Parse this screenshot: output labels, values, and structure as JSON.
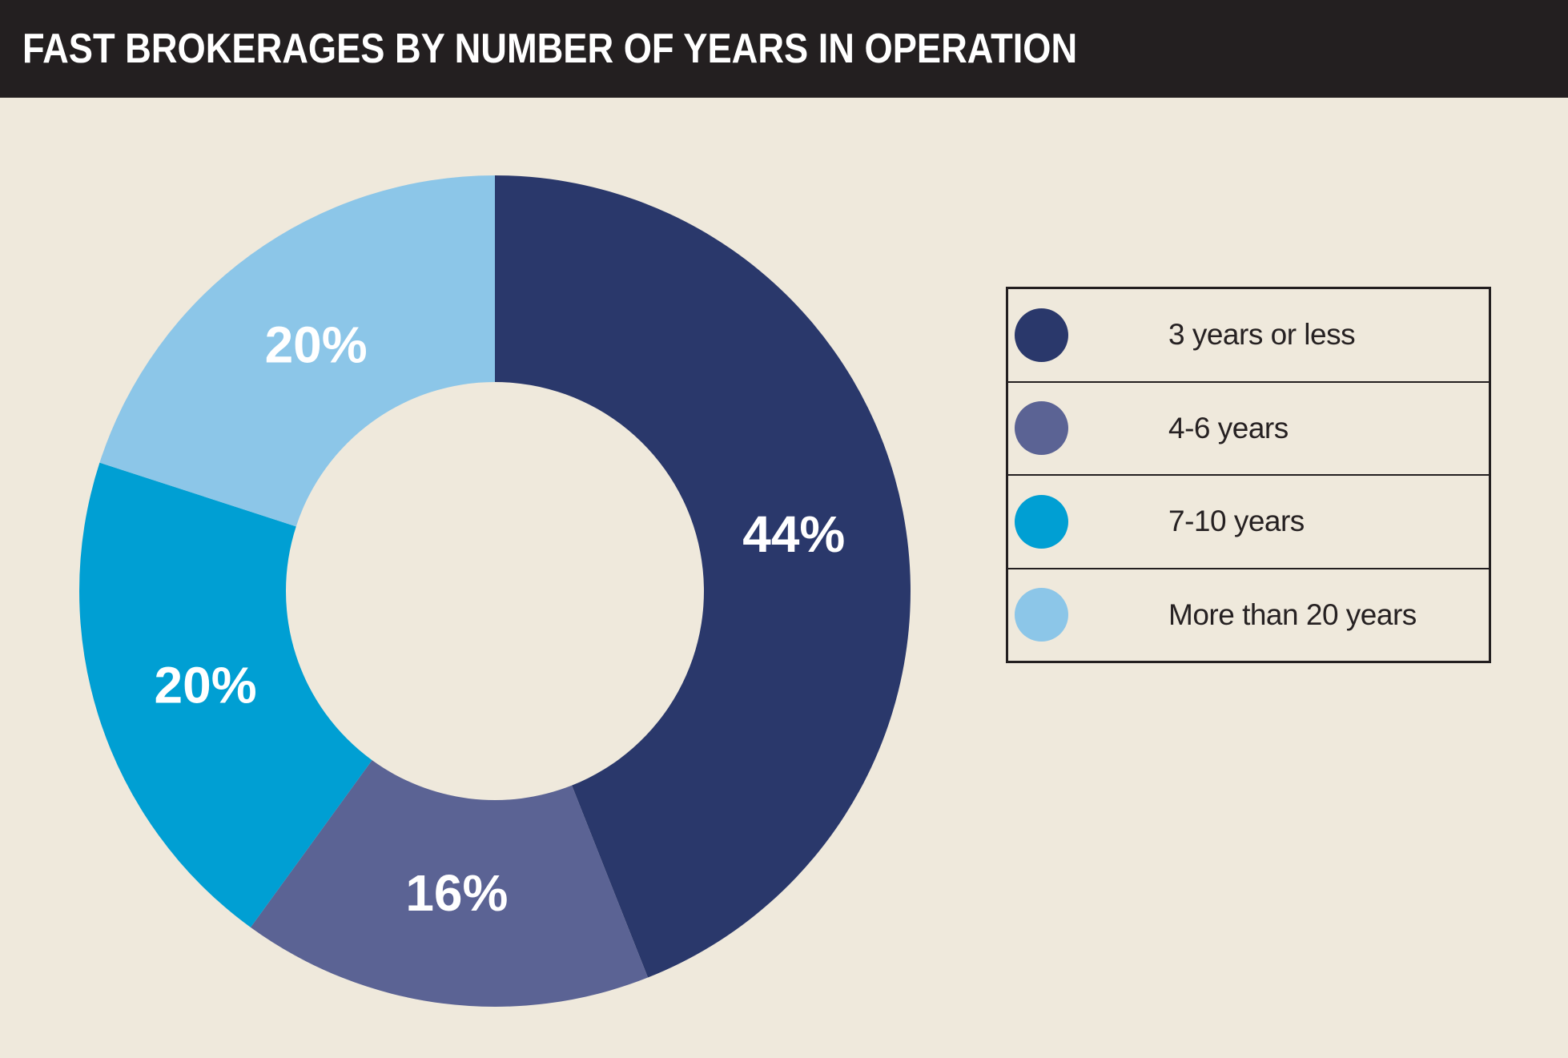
{
  "header": {
    "title": "FAST BROKERAGES BY NUMBER OF YEARS IN OPERATION"
  },
  "colors": {
    "background": "#efe9dc",
    "header_bar": "#231f20",
    "slice_label_text": "#ffffff",
    "legend_border": "#231f20",
    "legend_text": "#262122"
  },
  "chart_data": {
    "type": "pie",
    "subtype": "donut",
    "title": "FAST BROKERAGES BY NUMBER OF YEARS IN OPERATION",
    "categories": [
      "3 years or less",
      "4-6 years",
      "7-10 years",
      "More than 20 years"
    ],
    "values": [
      44,
      16,
      20,
      20
    ],
    "labels": [
      "44%",
      "16%",
      "20%",
      "20%"
    ],
    "colors": [
      "#2a386b",
      "#5b6394",
      "#009fd3",
      "#8cc6e8"
    ],
    "start_angle_deg": 0,
    "direction": "clockwise",
    "legend_position": "right",
    "grid": false
  }
}
